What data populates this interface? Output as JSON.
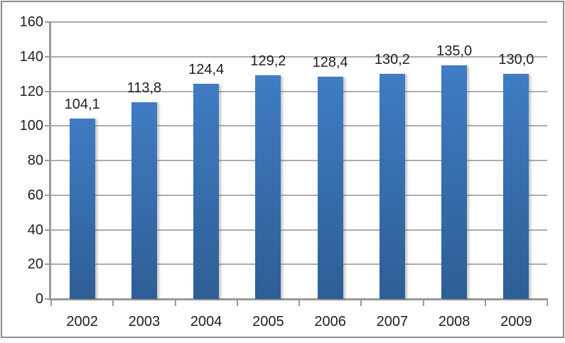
{
  "chart_data": {
    "type": "bar",
    "title": "",
    "xlabel": "",
    "ylabel": "",
    "categories": [
      "2002",
      "2003",
      "2004",
      "2005",
      "2006",
      "2007",
      "2008",
      "2009"
    ],
    "values": [
      104.1,
      113.8,
      124.4,
      129.2,
      128.4,
      130.2,
      135.0,
      130.0
    ],
    "value_labels": [
      "104,1",
      "113,8",
      "124,4",
      "129,2",
      "128,4",
      "130,2",
      "135,0",
      "130,0"
    ],
    "decimal_separator": ",",
    "ylim": [
      0,
      160
    ],
    "yticks": [
      "0",
      "20",
      "40",
      "60",
      "80",
      "100",
      "120",
      "140",
      "160"
    ],
    "grid": true,
    "legend": "none",
    "colors": {
      "bar_gradient_top": "#3F7CC3",
      "bar_gradient_bottom": "#2E5E95",
      "gridline": "#ADADAD",
      "axis": "#9A9A9A",
      "frame_border": "#8A8A8A",
      "text": "#1F1F1F",
      "background": "#FFFFFF"
    }
  }
}
